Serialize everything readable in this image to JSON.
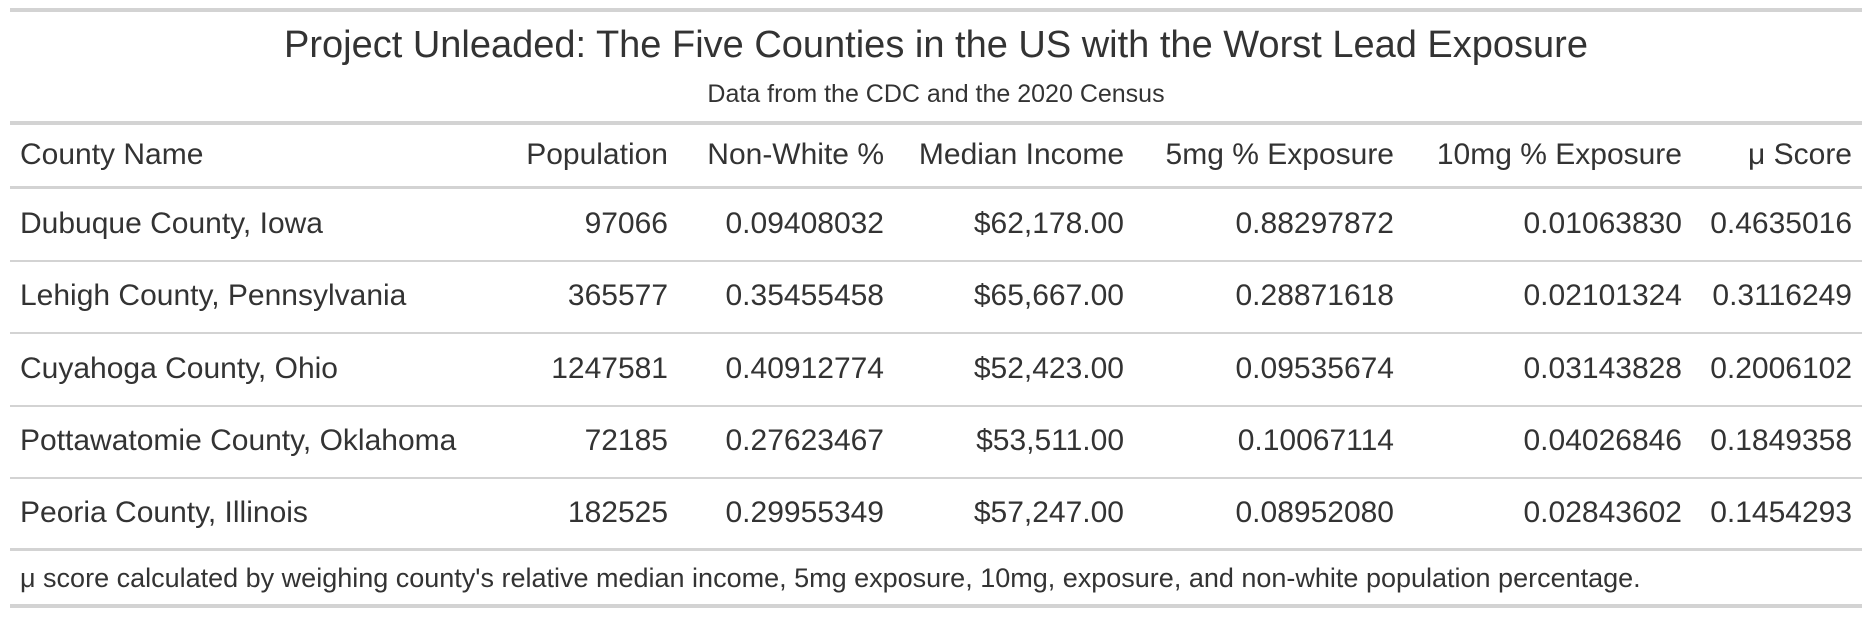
{
  "table": {
    "title": "Project Unleaded: The Five Counties in the US with the Worst Lead Exposure",
    "subtitle": "Data from the CDC and the 2020 Census",
    "columns": [
      "County Name",
      "Population",
      "Non-White %",
      "Median Income",
      "5mg % Exposure",
      "10mg % Exposure",
      "μ Score"
    ],
    "rows": [
      [
        "Dubuque County, Iowa",
        "97066",
        "0.09408032",
        "$62,178.00",
        "0.88297872",
        "0.01063830",
        "0.4635016"
      ],
      [
        "Lehigh County, Pennsylvania",
        "365577",
        "0.35455458",
        "$65,667.00",
        "0.28871618",
        "0.02101324",
        "0.3116249"
      ],
      [
        "Cuyahoga County, Ohio",
        "1247581",
        "0.40912774",
        "$52,423.00",
        "0.09535674",
        "0.03143828",
        "0.2006102"
      ],
      [
        "Pottawatomie County, Oklahoma",
        "72185",
        "0.27623467",
        "$53,511.00",
        "0.10067114",
        "0.04026846",
        "0.1849358"
      ],
      [
        "Peoria County, Illinois",
        "182525",
        "0.29955349",
        "$57,247.00",
        "0.08952080",
        "0.02843602",
        "0.1454293"
      ]
    ],
    "footnote": "μ score calculated by weighing county's relative median income, 5mg exposure, 10mg, exposure, and non-white population percentage."
  }
}
